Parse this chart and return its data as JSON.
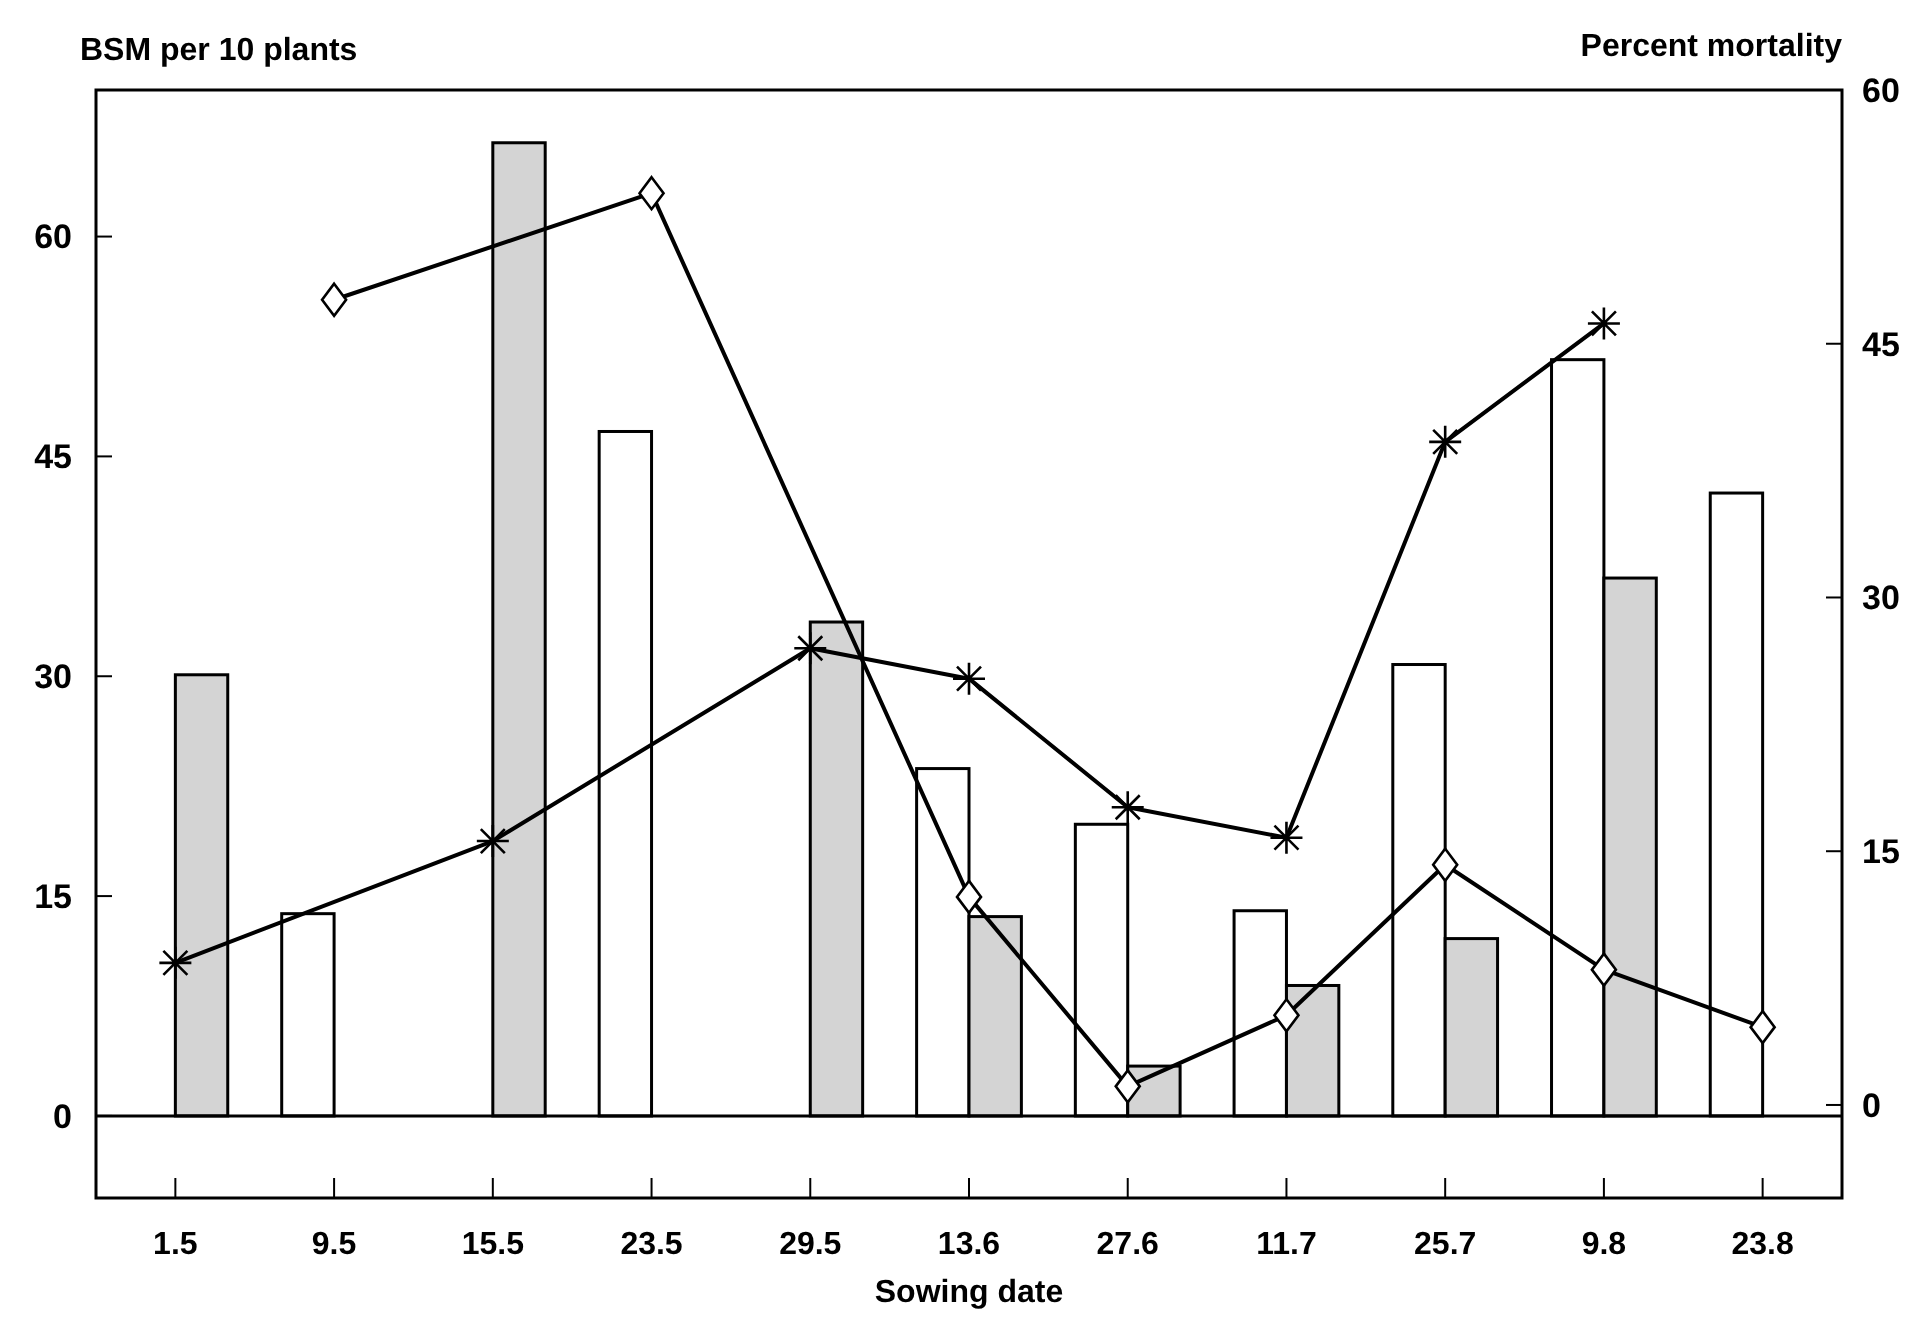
{
  "chart_data": {
    "type": "bar",
    "xlabel": "Sowing date",
    "ylabel": "BSM per 10 plants",
    "y2label": "Percent mortality",
    "categories": [
      "1.5",
      "9.5",
      "15.5",
      "23.5",
      "29.5",
      "13.6",
      "27.6",
      "11.7",
      "25.7",
      "9.8",
      "23.8"
    ],
    "series": [
      {
        "color": "#ffffff",
        "values": [
          null,
          13.8,
          null,
          46.7,
          null,
          23.7,
          19.9,
          14.0,
          30.8,
          51.6,
          42.5
        ]
      },
      {
        "color": "#d4d4d4",
        "values": [
          30.1,
          null,
          66.4,
          null,
          33.7,
          13.6,
          3.4,
          8.9,
          12.1,
          36.7,
          null
        ]
      },
      {
        "type": "line",
        "axis": "y2",
        "color": "#000000",
        "marker": "cross",
        "values": [
          8.4,
          null,
          15.6,
          null,
          27.0,
          25.2,
          17.6,
          15.8,
          39.2,
          46.2,
          null
        ]
      },
      {
        "type": "line",
        "axis": "y2",
        "color": "#000000",
        "marker": "diamond",
        "values": [
          null,
          47.6,
          null,
          53.9,
          null,
          12.3,
          1.1,
          5.3,
          14.2,
          8.0,
          4.6
        ]
      }
    ],
    "ylim": [
      -5.6,
      70
    ],
    "yticks": [
      0,
      15,
      30,
      45,
      60
    ],
    "y2lim": [
      -5.5,
      60
    ],
    "y2ticks": [
      0,
      15,
      30,
      45,
      60
    ]
  }
}
